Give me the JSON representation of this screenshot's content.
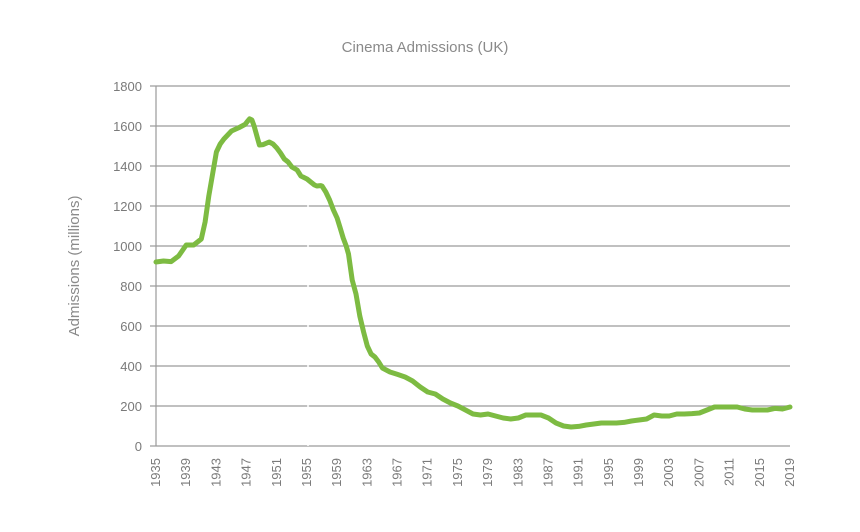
{
  "chart_data": {
    "type": "line",
    "title": "Cinema Admissions (UK)",
    "xlabel": "",
    "ylabel": "Admissions (millions)",
    "xlim": [
      1935,
      2019
    ],
    "ylim": [
      0,
      1800
    ],
    "yticks": [
      "0",
      "200",
      "400",
      "600",
      "800",
      "1000",
      "1200",
      "1400",
      "1600",
      "1800"
    ],
    "xticks": [
      "1935",
      "1939",
      "1943",
      "1947",
      "1951",
      "1955",
      "1959",
      "1963",
      "1967",
      "1971",
      "1975",
      "1979",
      "1983",
      "1987",
      "1991",
      "1995",
      "1999",
      "2003",
      "2007",
      "2011",
      "2015",
      "2019"
    ],
    "grid": true,
    "line_color": "#7dbb42",
    "series": [
      {
        "x": [
          1935,
          1936,
          1937,
          1938,
          1939,
          1940,
          1941,
          1941.5,
          1942,
          1942.5,
          1943,
          1943.5,
          1944,
          1945,
          1946,
          1946.8,
          1947.1,
          1947.4,
          1947.7,
          1948,
          1948.7,
          1949.2,
          1950,
          1950.5,
          1951,
          1951.5,
          1952,
          1952.5,
          1953,
          1953.7,
          1954.2,
          1955,
          1955.5,
          1956,
          1956.3,
          1956.8,
          1957,
          1957.5,
          1958,
          1958.5,
          1959,
          1959.4,
          1959.8,
          1960.2,
          1960.5,
          1961,
          1961.5,
          1962,
          1962.5,
          1963,
          1963.5,
          1964,
          1964.5,
          1965,
          1966,
          1967,
          1968,
          1969,
          1970,
          1971,
          1972,
          1973,
          1974,
          1975,
          1976,
          1977,
          1978,
          1979,
          1980,
          1981,
          1982,
          1983,
          1984,
          1985,
          1986,
          1987,
          1988,
          1989,
          1990,
          1991,
          1992,
          1993,
          1994,
          1995,
          1996,
          1997,
          1998,
          1999,
          2000,
          2001,
          2002,
          2003,
          2004,
          2005,
          2006,
          2007,
          2008,
          2009,
          2010,
          2011,
          2012,
          2013,
          2014,
          2015,
          2016,
          2017,
          2018,
          2019
        ],
        "y": [
          920,
          925,
          922,
          950,
          1005,
          1005,
          1035,
          1120,
          1250,
          1360,
          1470,
          1510,
          1535,
          1575,
          1592,
          1608,
          1622,
          1636,
          1630,
          1600,
          1505,
          1507,
          1520,
          1510,
          1490,
          1465,
          1435,
          1420,
          1395,
          1380,
          1350,
          1335,
          1320,
          1305,
          1300,
          1302,
          1300,
          1270,
          1230,
          1180,
          1140,
          1090,
          1040,
          1000,
          960,
          830,
          760,
          650,
          570,
          500,
          460,
          445,
          420,
          390,
          370,
          358,
          345,
          325,
          295,
          270,
          260,
          235,
          215,
          200,
          180,
          160,
          155,
          160,
          150,
          140,
          135,
          140,
          155,
          155,
          155,
          140,
          115,
          100,
          95,
          98,
          105,
          110,
          115,
          115,
          115,
          118,
          125,
          130,
          135,
          155,
          150,
          150,
          160,
          160,
          162,
          165,
          180,
          195,
          195,
          195,
          195,
          185,
          180,
          180,
          180,
          188,
          185,
          195
        ]
      }
    ]
  }
}
